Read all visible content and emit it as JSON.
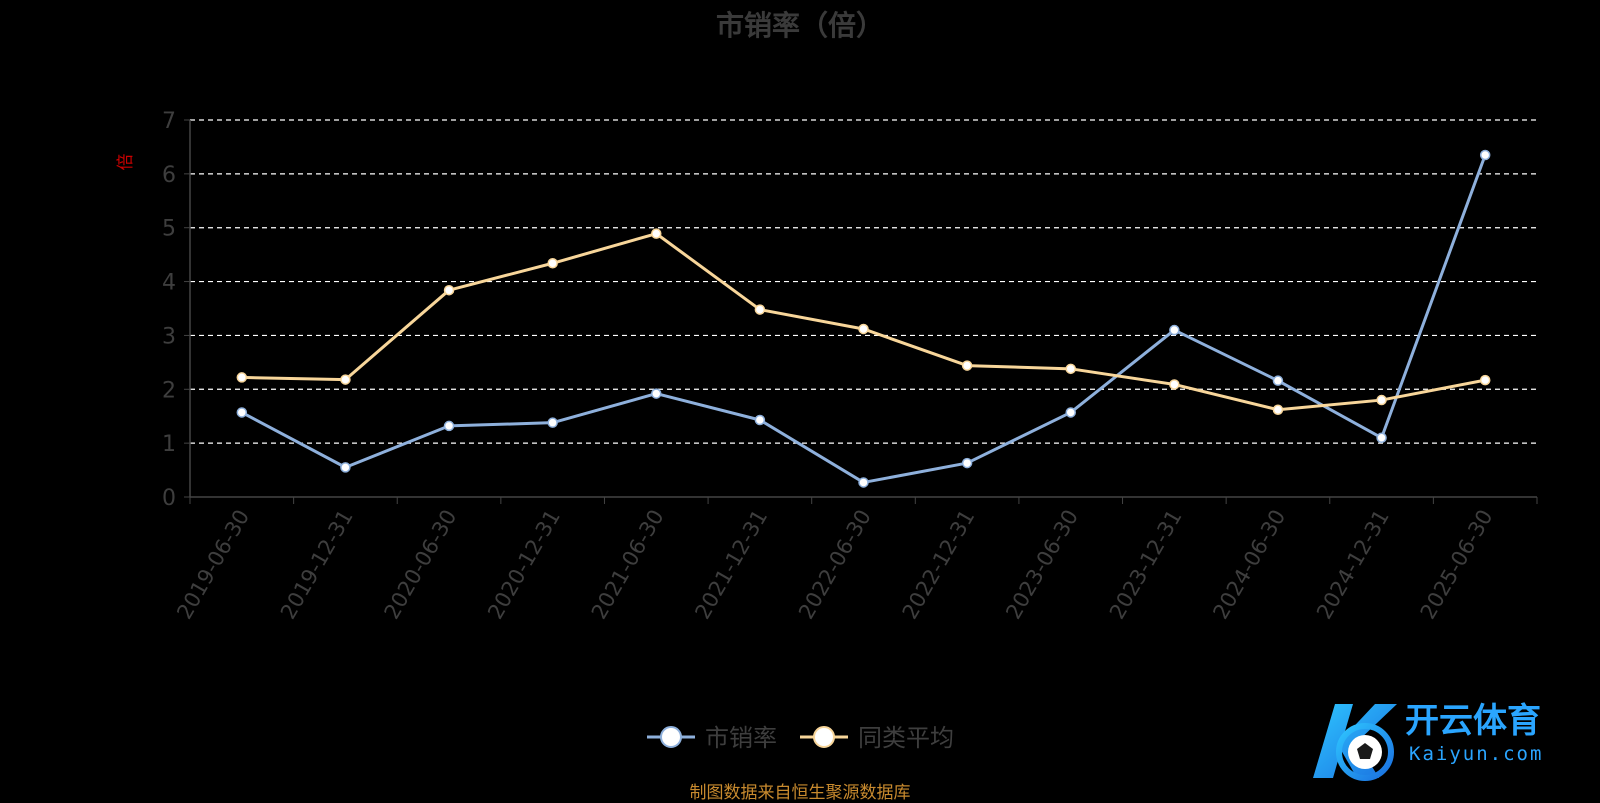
{
  "chart_data": {
    "type": "line",
    "title": "市销率（倍）",
    "ylabel": "倍",
    "xlabel": "",
    "ylim": [
      0,
      7
    ],
    "yticks": [
      0,
      1,
      2,
      3,
      4,
      5,
      6,
      7
    ],
    "grid": true,
    "legend_position": "bottom",
    "categories": [
      "2019-06-30",
      "2019-12-31",
      "2020-06-30",
      "2020-12-31",
      "2021-06-30",
      "2021-12-31",
      "2022-06-30",
      "2022-12-31",
      "2023-06-30",
      "2023-12-31",
      "2024-06-30",
      "2024-12-31",
      "2025-06-30"
    ],
    "series": [
      {
        "name": "市销率",
        "color": "#8eb0dc",
        "values": [
          1.57,
          0.55,
          1.32,
          1.38,
          1.92,
          1.43,
          0.27,
          0.63,
          1.57,
          3.1,
          2.16,
          1.1,
          6.35
        ]
      },
      {
        "name": "同类平均",
        "color": "#f8d69a",
        "values": [
          2.22,
          2.18,
          3.84,
          4.34,
          4.89,
          3.48,
          3.12,
          2.44,
          2.38,
          2.09,
          1.62,
          1.8,
          2.17
        ]
      }
    ]
  },
  "source_text": "制图数据来自恒生聚源数据库",
  "logo": {
    "brand_cn": "开云体育",
    "brand_en": "Kaiyun.com"
  }
}
